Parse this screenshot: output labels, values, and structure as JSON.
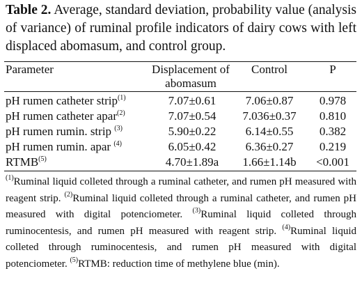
{
  "caption": {
    "label": "Table 2.",
    "text": " Average, standard deviation, probability value (analysis of variance) of ruminal profile indicators of dairy cows with left displaced abomasum, and control group."
  },
  "table": {
    "headers": {
      "parameter": "Parameter",
      "displacement_line1": "Displacement of",
      "displacement_line2": "abomasum",
      "control": "Control",
      "p": "P"
    },
    "rows": [
      {
        "parameter": "pH rumen catheter strip",
        "note": "(1)",
        "displacement": "7.07±0.61",
        "control": "7.06±0.87",
        "p": "0.978"
      },
      {
        "parameter": "pH rumen catheter apar",
        "note": "(2)",
        "displacement": "7.07±0.54",
        "control": "7.036±0.37",
        "p": "0.810"
      },
      {
        "parameter": "pH rumen rumin. strip ",
        "note": "(3)",
        "displacement": "5.90±0.22",
        "control": "6.14±0.55",
        "p": "0.382"
      },
      {
        "parameter": "pH rumen rumin. apar ",
        "note": "(4)",
        "displacement": "6.05±0.42",
        "control": "6.36±0.27",
        "p": "0.219"
      },
      {
        "parameter": "RTMB",
        "note": "(5)",
        "displacement": "4.70±1.89a",
        "control": "1.66±1.14b",
        "p": "<0.001"
      }
    ]
  },
  "footnotes": [
    {
      "mark": "(1)",
      "text": "Ruminal liquid colleted through a ruminal catheter, and rumen pH measured with reagent strip. "
    },
    {
      "mark": "(2)",
      "text": "Ruminal liquid colleted through a ruminal catheter, and rumen pH measured with digital potenciometer. "
    },
    {
      "mark": "(3)",
      "text": "Ruminal liquid colleted through ruminocentesis, and rumen pH measured with reagent strip. "
    },
    {
      "mark": "(4)",
      "text": "Ruminal liquid colleted through ruminocentesis, and rumen pH measured with digital potenciometer. "
    },
    {
      "mark": "(5)",
      "text": "RTMB: reduction time of methylene blue (min)."
    }
  ]
}
